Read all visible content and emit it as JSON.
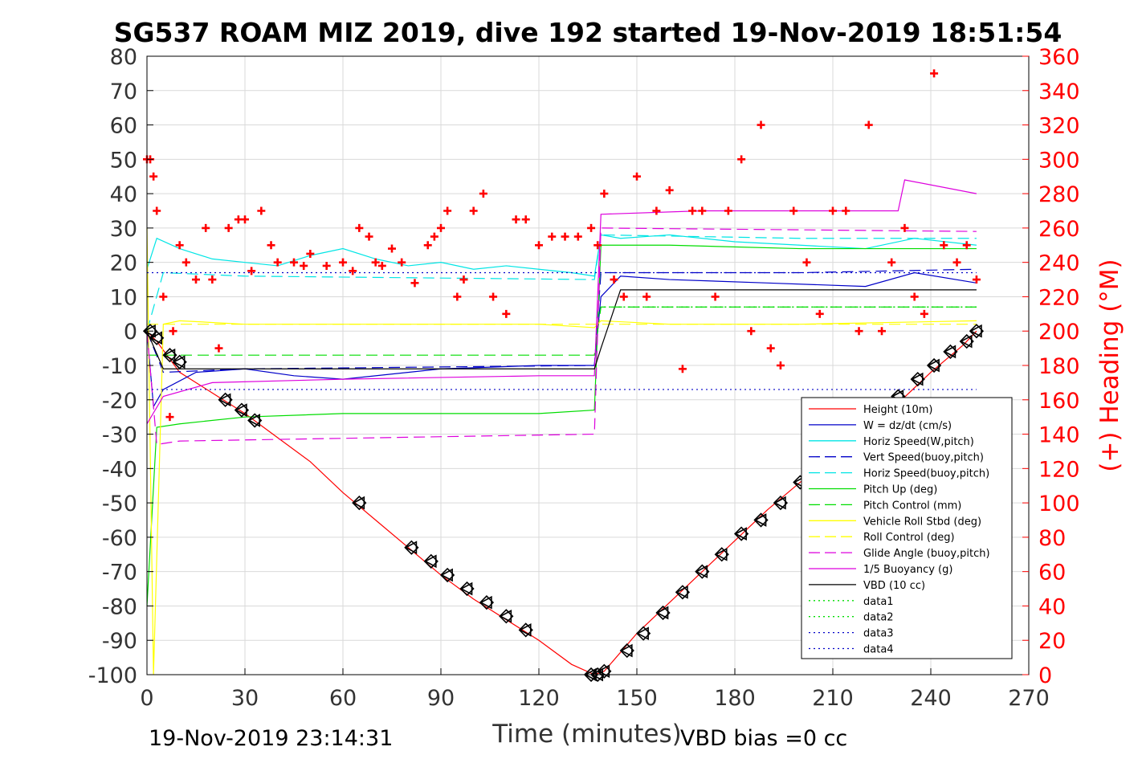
{
  "chart_data": {
    "type": "line",
    "title": "SG537 ROAM MIZ 2019, dive 192 started 19-Nov-2019 18:51:54",
    "xlabel": "Time (minutes)",
    "ylabel_right": "(+) Heading (°M)",
    "footer_left": "19-Nov-2019 23:14:31",
    "footer_right": "VBD bias =0 cc",
    "xlim": [
      0,
      270
    ],
    "ylim": [
      -100,
      80
    ],
    "ylim_right": [
      0,
      360
    ],
    "xticks": [
      "0",
      "30",
      "60",
      "90",
      "120",
      "150",
      "180",
      "210",
      "240",
      "270"
    ],
    "yticks": [
      "80",
      "70",
      "60",
      "50",
      "40",
      "30",
      "20",
      "10",
      "0",
      "-10",
      "-20",
      "-30",
      "-40",
      "-50",
      "-60",
      "-70",
      "-80",
      "-90",
      "-100"
    ],
    "yticks_right": [
      "360",
      "340",
      "320",
      "300",
      "280",
      "260",
      "240",
      "220",
      "200",
      "180",
      "160",
      "140",
      "120",
      "100",
      "80",
      "60",
      "40",
      "20",
      "0"
    ],
    "grid": true,
    "legend_position": "lower-right",
    "colors": {
      "right_axis": "#ff0000",
      "grid": "#d9d9d9"
    },
    "legend": [
      {
        "label": "Height (10m)",
        "color": "#ff0000",
        "style": "solid"
      },
      {
        "label": "W = dz/dt (cm/s)",
        "color": "#0000c8",
        "style": "solid"
      },
      {
        "label": "Horiz Speed(W,pitch)",
        "color": "#00e5e5",
        "style": "solid"
      },
      {
        "label": "Vert Speed(buoy,pitch)",
        "color": "#0000c8",
        "style": "dashed"
      },
      {
        "label": "Horiz Speed(buoy,pitch)",
        "color": "#00e5e5",
        "style": "dashed"
      },
      {
        "label": "Pitch Up (deg)",
        "color": "#00dd00",
        "style": "solid"
      },
      {
        "label": "Pitch Control (mm)",
        "color": "#00dd00",
        "style": "dashed"
      },
      {
        "label": "Vehicle Roll Stbd (deg)",
        "color": "#ffff00",
        "style": "solid"
      },
      {
        "label": "Roll Control (deg)",
        "color": "#ffff00",
        "style": "dashed"
      },
      {
        "label": "Glide Angle (buoy,pitch)",
        "color": "#dd00dd",
        "style": "dashed"
      },
      {
        "label": "1/5 Buoyancy (g)",
        "color": "#dd00dd",
        "style": "solid"
      },
      {
        "label": "VBD (10 cc)",
        "color": "#000000",
        "style": "solid"
      },
      {
        "label": "data1",
        "color": "#00dd00",
        "style": "dotted"
      },
      {
        "label": "data2",
        "color": "#00dd00",
        "style": "dotted"
      },
      {
        "label": "data3",
        "color": "#0000c8",
        "style": "dotted"
      },
      {
        "label": "data4",
        "color": "#0000c8",
        "style": "dotted"
      }
    ],
    "series": [
      {
        "name": "Height (10m)",
        "color": "#ff0000",
        "x": [
          0,
          3,
          10,
          20,
          30,
          40,
          50,
          60,
          70,
          80,
          90,
          100,
          110,
          120,
          130,
          137,
          140,
          150,
          160,
          170,
          180,
          190,
          200,
          210,
          220,
          230,
          240,
          250,
          254
        ],
        "y": [
          0,
          -3,
          -12,
          -18,
          -24,
          -31,
          -38,
          -47,
          -55,
          -63,
          -71,
          -78,
          -84,
          -90,
          -97,
          -100,
          -99,
          -88,
          -79,
          -70,
          -61,
          -52,
          -44,
          -37,
          -30,
          -21,
          -12,
          -4,
          0
        ]
      },
      {
        "name": "W = dz/dt (cm/s)",
        "color": "#0000c8",
        "x": [
          0,
          2,
          5,
          15,
          30,
          45,
          60,
          90,
          120,
          137,
          139,
          145,
          160,
          190,
          220,
          235,
          254
        ],
        "y": [
          0,
          -22,
          -17,
          -12,
          -11,
          -13,
          -14,
          -11,
          -10,
          -10,
          10,
          16,
          15,
          14,
          13,
          17,
          14
        ]
      },
      {
        "name": "Horiz Speed(W,pitch)",
        "color": "#00e5e5",
        "x": [
          0,
          3,
          10,
          20,
          30,
          40,
          50,
          60,
          70,
          80,
          90,
          100,
          110,
          120,
          130,
          137,
          139,
          145,
          160,
          180,
          200,
          220,
          235,
          254
        ],
        "y": [
          18,
          27,
          24,
          21,
          20,
          19,
          22,
          24,
          21,
          19,
          20,
          18,
          19,
          18,
          17,
          16,
          28,
          27,
          28,
          26,
          25,
          24,
          27,
          25
        ]
      },
      {
        "name": "Vert Speed(buoy,pitch)",
        "color": "#0000c8",
        "dashed": true,
        "x": [
          0,
          5,
          30,
          137,
          139,
          200,
          254
        ],
        "y": [
          0,
          -12,
          -11,
          -10,
          17,
          17,
          18
        ]
      },
      {
        "name": "Horiz Speed(buoy,pitch)",
        "color": "#00e5e5",
        "dashed": true,
        "x": [
          0,
          5,
          30,
          137,
          139,
          200,
          254
        ],
        "y": [
          0,
          17,
          16,
          15,
          28,
          27,
          27
        ]
      },
      {
        "name": "Pitch Up (deg)",
        "color": "#00dd00",
        "x": [
          0,
          3,
          10,
          30,
          60,
          90,
          120,
          137,
          139,
          160,
          200,
          254
        ],
        "y": [
          -80,
          -28,
          -27,
          -25,
          -24,
          -24,
          -24,
          -23,
          25,
          25,
          24,
          24
        ]
      },
      {
        "name": "Pitch Control (mm)",
        "color": "#00dd00",
        "dashed": true,
        "x": [
          0,
          5,
          137,
          139,
          254
        ],
        "y": [
          -7,
          -7,
          -7,
          7,
          7
        ]
      },
      {
        "name": "Vehicle Roll Stbd (deg)",
        "color": "#ffff00",
        "x": [
          0,
          2,
          5,
          10,
          30,
          60,
          90,
          120,
          137,
          139,
          160,
          200,
          254
        ],
        "y": [
          30,
          -100,
          2,
          3,
          2,
          2,
          2,
          2,
          1,
          3,
          2,
          2,
          3
        ]
      },
      {
        "name": "Roll Control (deg)",
        "color": "#ffff00",
        "dashed": true,
        "x": [
          0,
          254
        ],
        "y": [
          2,
          2
        ]
      },
      {
        "name": "Glide Angle (buoy,pitch)",
        "color": "#dd00dd",
        "dashed": true,
        "x": [
          0,
          3,
          10,
          137,
          139,
          254
        ],
        "y": [
          0,
          -33,
          -32,
          -30,
          30,
          29
        ]
      },
      {
        "name": "1/5 Buoyancy (g)",
        "color": "#dd00dd",
        "x": [
          0,
          5,
          20,
          60,
          120,
          137,
          139,
          170,
          210,
          230,
          232,
          254
        ],
        "y": [
          -27,
          -19,
          -15,
          -14,
          -13,
          -13,
          34,
          35,
          35,
          35,
          44,
          40
        ]
      },
      {
        "name": "VBD (10 cc)",
        "color": "#000000",
        "x": [
          0,
          5,
          137,
          139,
          145,
          254
        ],
        "y": [
          0,
          -11,
          -11,
          -5,
          12,
          12
        ]
      },
      {
        "name": "data1",
        "color": "#00dd00",
        "dotted": true,
        "x": [
          140,
          254
        ],
        "y": [
          7,
          7
        ]
      },
      {
        "name": "data2",
        "color": "#00dd00",
        "dotted": true,
        "x": [
          140,
          254
        ],
        "y": [
          7,
          7
        ]
      },
      {
        "name": "data3",
        "color": "#0000c8",
        "dotted": true,
        "x": [
          0,
          254
        ],
        "y": [
          17,
          17
        ]
      },
      {
        "name": "data4",
        "color": "#0000c8",
        "dotted": true,
        "x": [
          0,
          254
        ],
        "y": [
          -17,
          -17
        ]
      },
      {
        "name": "Heading",
        "axis": "right",
        "color": "#ff0000",
        "marker": "+",
        "x": [
          0,
          1,
          2,
          3,
          5,
          7,
          8,
          10,
          12,
          15,
          18,
          20,
          22,
          25,
          28,
          30,
          32,
          35,
          38,
          40,
          45,
          48,
          50,
          55,
          60,
          63,
          65,
          68,
          70,
          72,
          75,
          78,
          82,
          86,
          88,
          90,
          92,
          95,
          97,
          100,
          103,
          106,
          110,
          113,
          116,
          120,
          124,
          128,
          132,
          136,
          138,
          140,
          143,
          146,
          150,
          153,
          156,
          160,
          164,
          167,
          170,
          174,
          178,
          182,
          185,
          188,
          191,
          194,
          198,
          202,
          206,
          210,
          214,
          218,
          221,
          225,
          228,
          232,
          235,
          238,
          241,
          244,
          248,
          251,
          254
        ],
        "y": [
          300,
          300,
          290,
          270,
          220,
          150,
          200,
          250,
          240,
          230,
          260,
          230,
          190,
          260,
          265,
          265,
          235,
          270,
          250,
          240,
          240,
          238,
          245,
          238,
          240,
          235,
          260,
          255,
          240,
          238,
          248,
          240,
          228,
          250,
          255,
          260,
          270,
          220,
          230,
          270,
          280,
          220,
          210,
          265,
          265,
          250,
          255,
          255,
          255,
          260,
          250,
          280,
          230,
          220,
          290,
          220,
          270,
          282,
          178,
          270,
          270,
          220,
          270,
          300,
          200,
          320,
          190,
          180,
          270,
          240,
          210,
          270,
          270,
          200,
          320,
          200,
          240,
          260,
          220,
          210,
          350,
          250,
          240,
          250,
          230
        ]
      }
    ],
    "markers": {
      "name": "Height samples",
      "color": "#000000",
      "x": [
        1,
        3,
        7,
        10,
        24,
        29,
        33,
        65,
        81,
        87,
        92,
        98,
        104,
        110,
        116,
        136,
        138,
        140,
        147,
        152,
        158,
        164,
        170,
        176,
        182,
        188,
        194,
        200,
        206,
        212,
        218,
        224,
        230,
        236,
        241,
        246,
        251,
        254
      ],
      "y": [
        0,
        -2,
        -7,
        -9,
        -20,
        -23,
        -26,
        -50,
        -63,
        -67,
        -71,
        -75,
        -79,
        -83,
        -87,
        -100,
        -100,
        -99,
        -93,
        -88,
        -82,
        -76,
        -70,
        -65,
        -59,
        -55,
        -50,
        -44,
        -38,
        -32,
        -26,
        -22,
        -19,
        -14,
        -10,
        -6,
        -3,
        0
      ]
    }
  }
}
